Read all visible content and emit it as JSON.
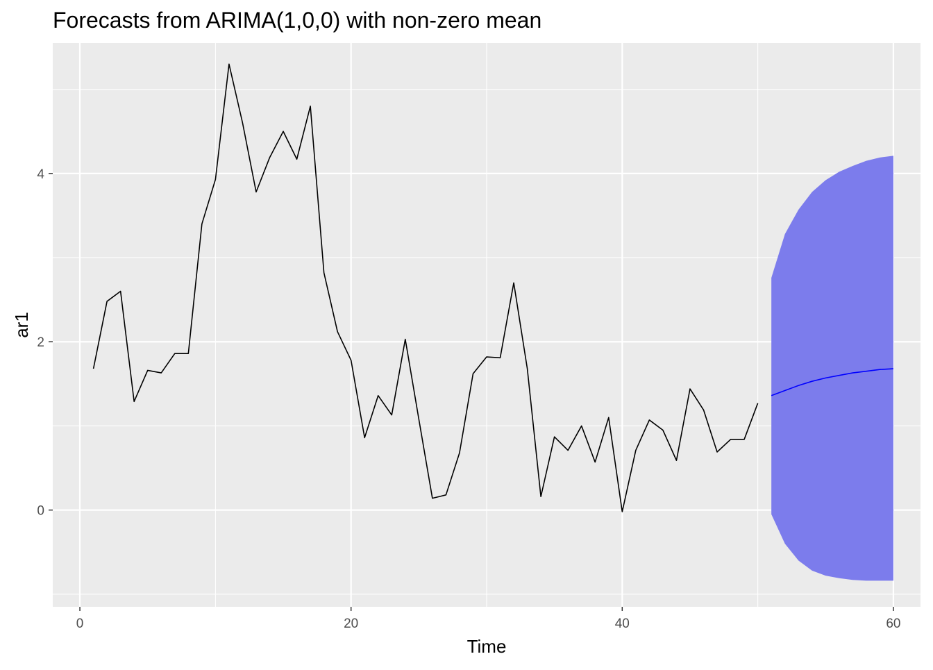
{
  "chart_data": {
    "type": "line",
    "title": "Forecasts from ARIMA(1,0,0) with non-zero mean",
    "xlabel": "Time",
    "ylabel": "ar1",
    "xlim": [
      -2,
      62
    ],
    "ylim": [
      -1.15,
      5.55
    ],
    "x_ticks": [
      0,
      20,
      40,
      60
    ],
    "x_tick_labels": [
      "0",
      "20",
      "40",
      "60"
    ],
    "y_ticks": [
      0,
      2,
      4
    ],
    "y_tick_labels": [
      "0",
      "2",
      "4"
    ],
    "x_minor_ticks": [
      10,
      30,
      50
    ],
    "y_minor_ticks": [
      -1,
      1,
      3,
      5
    ],
    "grid": true,
    "background_color": "#ebebeb",
    "grid_color": "#ffffff",
    "series": [
      {
        "kind": "observed",
        "color": "#000000",
        "x": [
          1,
          2,
          3,
          4,
          5,
          6,
          7,
          8,
          9,
          10,
          11,
          12,
          13,
          14,
          15,
          16,
          17,
          18,
          19,
          20,
          21,
          22,
          23,
          24,
          25,
          26,
          27,
          28,
          29,
          30,
          31,
          32,
          33,
          34,
          35,
          36,
          37,
          38,
          39,
          40,
          41,
          42,
          43,
          44,
          45,
          46,
          47,
          48,
          49,
          50
        ],
        "y": [
          1.68,
          2.48,
          2.6,
          1.29,
          1.66,
          1.63,
          1.86,
          1.86,
          3.4,
          3.93,
          5.3,
          4.6,
          3.78,
          4.19,
          4.5,
          4.17,
          4.8,
          2.82,
          2.12,
          1.78,
          0.86,
          1.36,
          1.13,
          2.03,
          1.08,
          0.14,
          0.18,
          0.68,
          1.62,
          1.82,
          1.81,
          2.7,
          1.68,
          0.16,
          0.87,
          0.71,
          1.0,
          0.57,
          1.1,
          -0.02,
          0.71,
          1.07,
          0.95,
          0.59,
          1.44,
          1.19,
          0.69,
          0.84,
          0.84,
          1.27
        ]
      },
      {
        "kind": "forecast",
        "color": "#0000ff",
        "x": [
          51,
          52,
          53,
          54,
          55,
          56,
          57,
          58,
          59,
          60
        ],
        "y": [
          1.36,
          1.42,
          1.48,
          1.53,
          1.57,
          1.6,
          1.63,
          1.65,
          1.67,
          1.68
        ]
      }
    ],
    "interval": {
      "color": "#7c7cec",
      "x": [
        51,
        52,
        53,
        54,
        55,
        56,
        57,
        58,
        59,
        60
      ],
      "lower": [
        -0.05,
        -0.4,
        -0.6,
        -0.72,
        -0.78,
        -0.81,
        -0.83,
        -0.84,
        -0.84,
        -0.84
      ],
      "upper": [
        2.76,
        3.28,
        3.57,
        3.78,
        3.92,
        4.02,
        4.09,
        4.15,
        4.19,
        4.21
      ]
    }
  }
}
